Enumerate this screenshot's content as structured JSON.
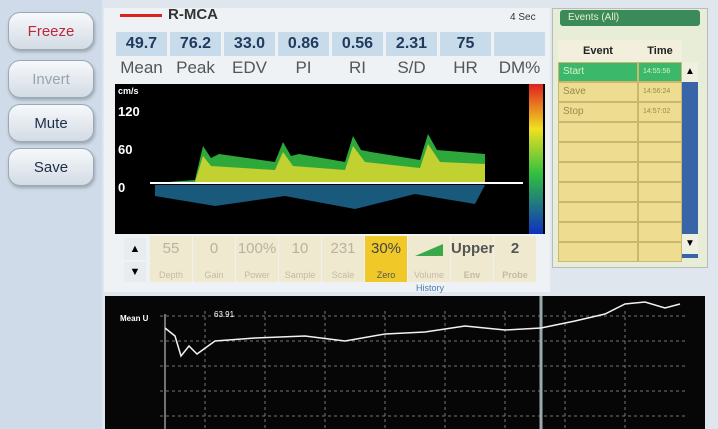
{
  "buttons": [
    "Freeze",
    "Invert",
    "Mute",
    "Save"
  ],
  "header": {
    "vessel": "R-MCA",
    "sweep": "4 Sec",
    "events_filter": "Events (All)"
  },
  "metrics": [
    {
      "value": "49.7",
      "label": "Mean"
    },
    {
      "value": "76.2",
      "label": "Peak"
    },
    {
      "value": "33.0",
      "label": "EDV"
    },
    {
      "value": "0.86",
      "label": "PI"
    },
    {
      "value": "0.56",
      "label": "RI"
    },
    {
      "value": "2.31",
      "label": "S/D"
    },
    {
      "value": "75",
      "label": "HR"
    },
    {
      "label": "DM%"
    }
  ],
  "spectrum": {
    "unit": "cm/s",
    "scale": [
      "120",
      "60",
      "0"
    ]
  },
  "controls": [
    {
      "value": "55",
      "label": "Depth"
    },
    {
      "value": "0",
      "label": "Gain"
    },
    {
      "value": "100%",
      "label": "Power"
    },
    {
      "value": "10",
      "label": "Sample"
    },
    {
      "value": "231",
      "label": "Scale"
    },
    {
      "value": "30%",
      "label": "Zero"
    },
    {
      "label": "Volume"
    },
    {
      "value": "Upper",
      "label": "Env"
    },
    {
      "value": "2",
      "label": "Probe"
    }
  ],
  "history": {
    "title": "History",
    "trace": "Mean U",
    "marker": "63.91"
  },
  "events": {
    "columns": [
      "Event",
      "Time"
    ],
    "rows": [
      [
        "Start",
        "14:55:56"
      ],
      [
        "Save",
        "14:56:24"
      ],
      [
        "Stop",
        "14:57:02"
      ]
    ]
  }
}
